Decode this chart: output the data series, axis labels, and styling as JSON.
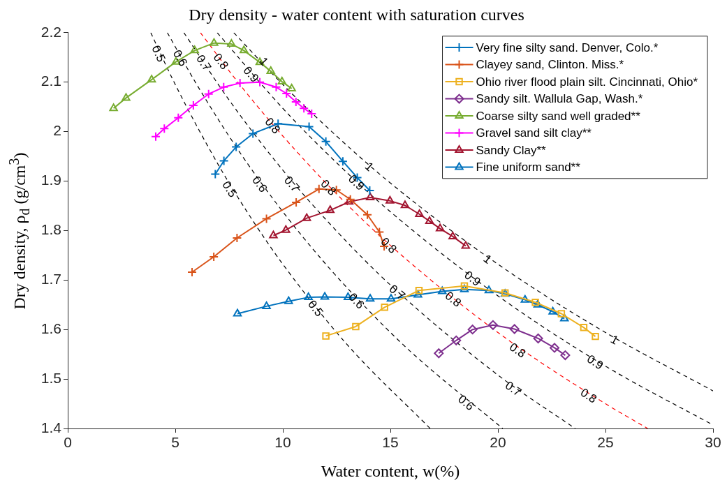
{
  "chart_data": {
    "type": "line",
    "title": "Dry density - water content with saturation curves",
    "xlabel": "Water content, w(%)",
    "ylabel": "Dry density, ρ$_{d}$ (g/cm$^{3}$)",
    "xlim": [
      0,
      30
    ],
    "xticks": [
      0,
      5,
      10,
      15,
      20,
      25,
      30
    ],
    "ylim": [
      1.4,
      2.2
    ],
    "yticks": [
      1.4,
      1.5,
      1.6,
      1.7,
      1.8,
      1.9,
      2,
      2.1,
      2.2
    ],
    "grid": false,
    "legend": "top right",
    "line_style": "solid",
    "series": [
      {
        "name": "Very fine silty sand. Denver, Colo.*",
        "color": "#0072bd",
        "marker": "cross",
        "x": [
          6.86,
          7.26,
          7.83,
          8.61,
          9.78,
          11.22,
          12.0,
          12.79,
          13.46,
          14.04
        ],
        "values": [
          1.914,
          1.941,
          1.969,
          1.996,
          2.016,
          2.01,
          1.98,
          1.94,
          1.907,
          1.881
        ]
      },
      {
        "name": "Clayey sand, Clinton. Miss.*",
        "color": "#d95319",
        "marker": "cross",
        "x": [
          5.78,
          6.79,
          7.87,
          9.24,
          10.62,
          11.68,
          12.49,
          13.14,
          13.93,
          14.49,
          14.71
        ],
        "values": [
          1.716,
          1.747,
          1.785,
          1.824,
          1.857,
          1.884,
          1.882,
          1.863,
          1.832,
          1.797,
          1.768
        ]
      },
      {
        "name": "Ohio river flood plain silt. Cincinnati, Ohio*",
        "color": "#edb120",
        "marker": "square",
        "x": [
          12.0,
          13.39,
          14.73,
          16.33,
          18.44,
          20.33,
          21.74,
          22.95,
          23.99,
          24.53
        ],
        "values": [
          1.587,
          1.606,
          1.645,
          1.679,
          1.688,
          1.674,
          1.655,
          1.632,
          1.604,
          1.586
        ]
      },
      {
        "name": "Sandy silt. Wallula Gap, Wash.*",
        "color": "#7e2f8e",
        "marker": "diamond",
        "x": [
          17.25,
          18.06,
          18.82,
          19.77,
          20.77,
          21.87,
          22.63,
          23.13
        ],
        "values": [
          1.552,
          1.578,
          1.6,
          1.609,
          1.601,
          1.582,
          1.563,
          1.548
        ]
      },
      {
        "name": "Coarse silty sand well graded**",
        "color": "#77ac30",
        "marker": "triangle",
        "x": [
          2.13,
          2.71,
          3.9,
          5.03,
          5.9,
          6.8,
          7.61,
          8.19,
          8.93,
          9.44,
          9.96,
          10.41
        ],
        "values": [
          2.047,
          2.068,
          2.105,
          2.141,
          2.164,
          2.179,
          2.177,
          2.164,
          2.14,
          2.122,
          2.101,
          2.087
        ]
      },
      {
        "name": "Gravel sand silt clay**",
        "color": "#ff00ff",
        "marker": "cross",
        "x": [
          4.09,
          4.49,
          5.14,
          5.84,
          6.55,
          7.25,
          8.01,
          8.93,
          9.69,
          10.17,
          10.61,
          10.98,
          11.34
        ],
        "values": [
          1.99,
          2.006,
          2.028,
          2.053,
          2.076,
          2.09,
          2.098,
          2.1,
          2.09,
          2.077,
          2.06,
          2.047,
          2.036
        ]
      },
      {
        "name": "Sandy Clay**",
        "color": "#a2142f",
        "marker": "triangle",
        "x": [
          9.56,
          10.14,
          11.11,
          12.2,
          13.08,
          14.06,
          14.98,
          15.68,
          16.35,
          16.82,
          17.31,
          17.9,
          18.5
        ],
        "values": [
          1.79,
          1.801,
          1.825,
          1.841,
          1.858,
          1.867,
          1.86,
          1.851,
          1.833,
          1.819,
          1.804,
          1.788,
          1.769
        ]
      },
      {
        "name": "Fine uniform sand**",
        "color": "#0072bd",
        "marker": "triangle",
        "x": [
          7.89,
          9.24,
          10.27,
          11.19,
          11.95,
          13.03,
          14.06,
          15.03,
          16.28,
          17.41,
          18.44,
          19.58,
          20.33,
          21.26,
          21.85,
          22.55,
          23.09
        ],
        "values": [
          1.632,
          1.647,
          1.657,
          1.665,
          1.666,
          1.665,
          1.662,
          1.662,
          1.67,
          1.677,
          1.681,
          1.679,
          1.672,
          1.66,
          1.65,
          1.636,
          1.622
        ]
      },
      {
        "color": "#000000",
        "marker": "none",
        "line_style": "dashed",
        "x": [
          3.86,
          5,
          7,
          8.5,
          10,
          13,
          16.85
        ],
        "values": [
          2.2,
          2.095,
          1.933,
          1.827,
          1.732,
          1.569,
          1.4
        ]
      },
      {
        "color": "#000000",
        "marker": "none",
        "line_style": "dashed",
        "x": [
          4.63,
          6,
          8,
          10,
          12,
          14,
          16,
          20.22
        ],
        "values": [
          2.2,
          2.095,
          1.958,
          1.838,
          1.732,
          1.638,
          1.553,
          1.4
        ]
      },
      {
        "color": "#000000",
        "marker": "none",
        "line_style": "dashed",
        "x": [
          5.4,
          7.5,
          10,
          12.5,
          15,
          20,
          23.59
        ],
        "values": [
          2.2,
          2.064,
          1.922,
          1.799,
          1.69,
          1.508,
          1.4
        ]
      },
      {
        "color": "#ff0000",
        "marker": "none",
        "line_style": "dashed",
        "x": [
          6.17,
          8,
          10,
          12.5,
          15,
          20,
          25,
          26.96
        ],
        "values": [
          2.2,
          2.095,
          1.991,
          1.874,
          1.77,
          1.594,
          1.45,
          1.4
        ]
      },
      {
        "color": "#000000",
        "marker": "none",
        "line_style": "dashed",
        "x": [
          6.95,
          10,
          12.5,
          15,
          20,
          25,
          30
        ],
        "values": [
          2.2,
          2.047,
          1.937,
          1.838,
          1.668,
          1.526,
          1.407
        ]
      },
      {
        "color": "#000000",
        "marker": "none",
        "line_style": "dashed",
        "x": [
          7.72,
          10,
          12.5,
          15,
          20,
          25,
          30
        ],
        "values": [
          2.2,
          2.095,
          1.991,
          1.896,
          1.732,
          1.594,
          1.476
        ]
      }
    ],
    "annotations": [
      {
        "text": "0.5",
        "x": 4.2,
        "y": 2.157
      },
      {
        "text": "0.5",
        "x": 7.5,
        "y": 1.883
      },
      {
        "text": "0.5",
        "x": 11.5,
        "y": 1.642
      },
      {
        "text": "0.6",
        "x": 5.2,
        "y": 2.148
      },
      {
        "text": "0.6",
        "x": 8.9,
        "y": 1.893
      },
      {
        "text": "0.6",
        "x": 13.4,
        "y": 1.657
      },
      {
        "text": "0.6",
        "x": 18.5,
        "y": 1.451
      },
      {
        "text": "0.7",
        "x": 6.3,
        "y": 2.138
      },
      {
        "text": "0.7",
        "x": 10.4,
        "y": 1.893
      },
      {
        "text": "0.7",
        "x": 15.3,
        "y": 1.674
      },
      {
        "text": "0.7",
        "x": 20.7,
        "y": 1.479
      },
      {
        "text": "0.8",
        "x": 7.1,
        "y": 2.141
      },
      {
        "text": "0.8",
        "x": 9.5,
        "y": 2.011
      },
      {
        "text": "0.8",
        "x": 12.1,
        "y": 1.886
      },
      {
        "text": "0.8",
        "x": 14.9,
        "y": 1.769
      },
      {
        "text": "0.8",
        "x": 17.9,
        "y": 1.66
      },
      {
        "text": "0.8",
        "x": 20.9,
        "y": 1.557
      },
      {
        "text": "0.8",
        "x": 24.2,
        "y": 1.465
      },
      {
        "text": "0.9",
        "x": 8.5,
        "y": 2.115
      },
      {
        "text": "0.9",
        "x": 13.4,
        "y": 1.896
      },
      {
        "text": "0.9",
        "x": 18.8,
        "y": 1.702
      },
      {
        "text": "0.9",
        "x": 24.5,
        "y": 1.533
      },
      {
        "text": "1",
        "x": 9.1,
        "y": 2.141
      },
      {
        "text": "1",
        "x": 14.0,
        "y": 1.928
      },
      {
        "text": "1",
        "x": 19.5,
        "y": 1.741
      },
      {
        "text": "1",
        "x": 25.4,
        "y": 1.578
      }
    ]
  }
}
